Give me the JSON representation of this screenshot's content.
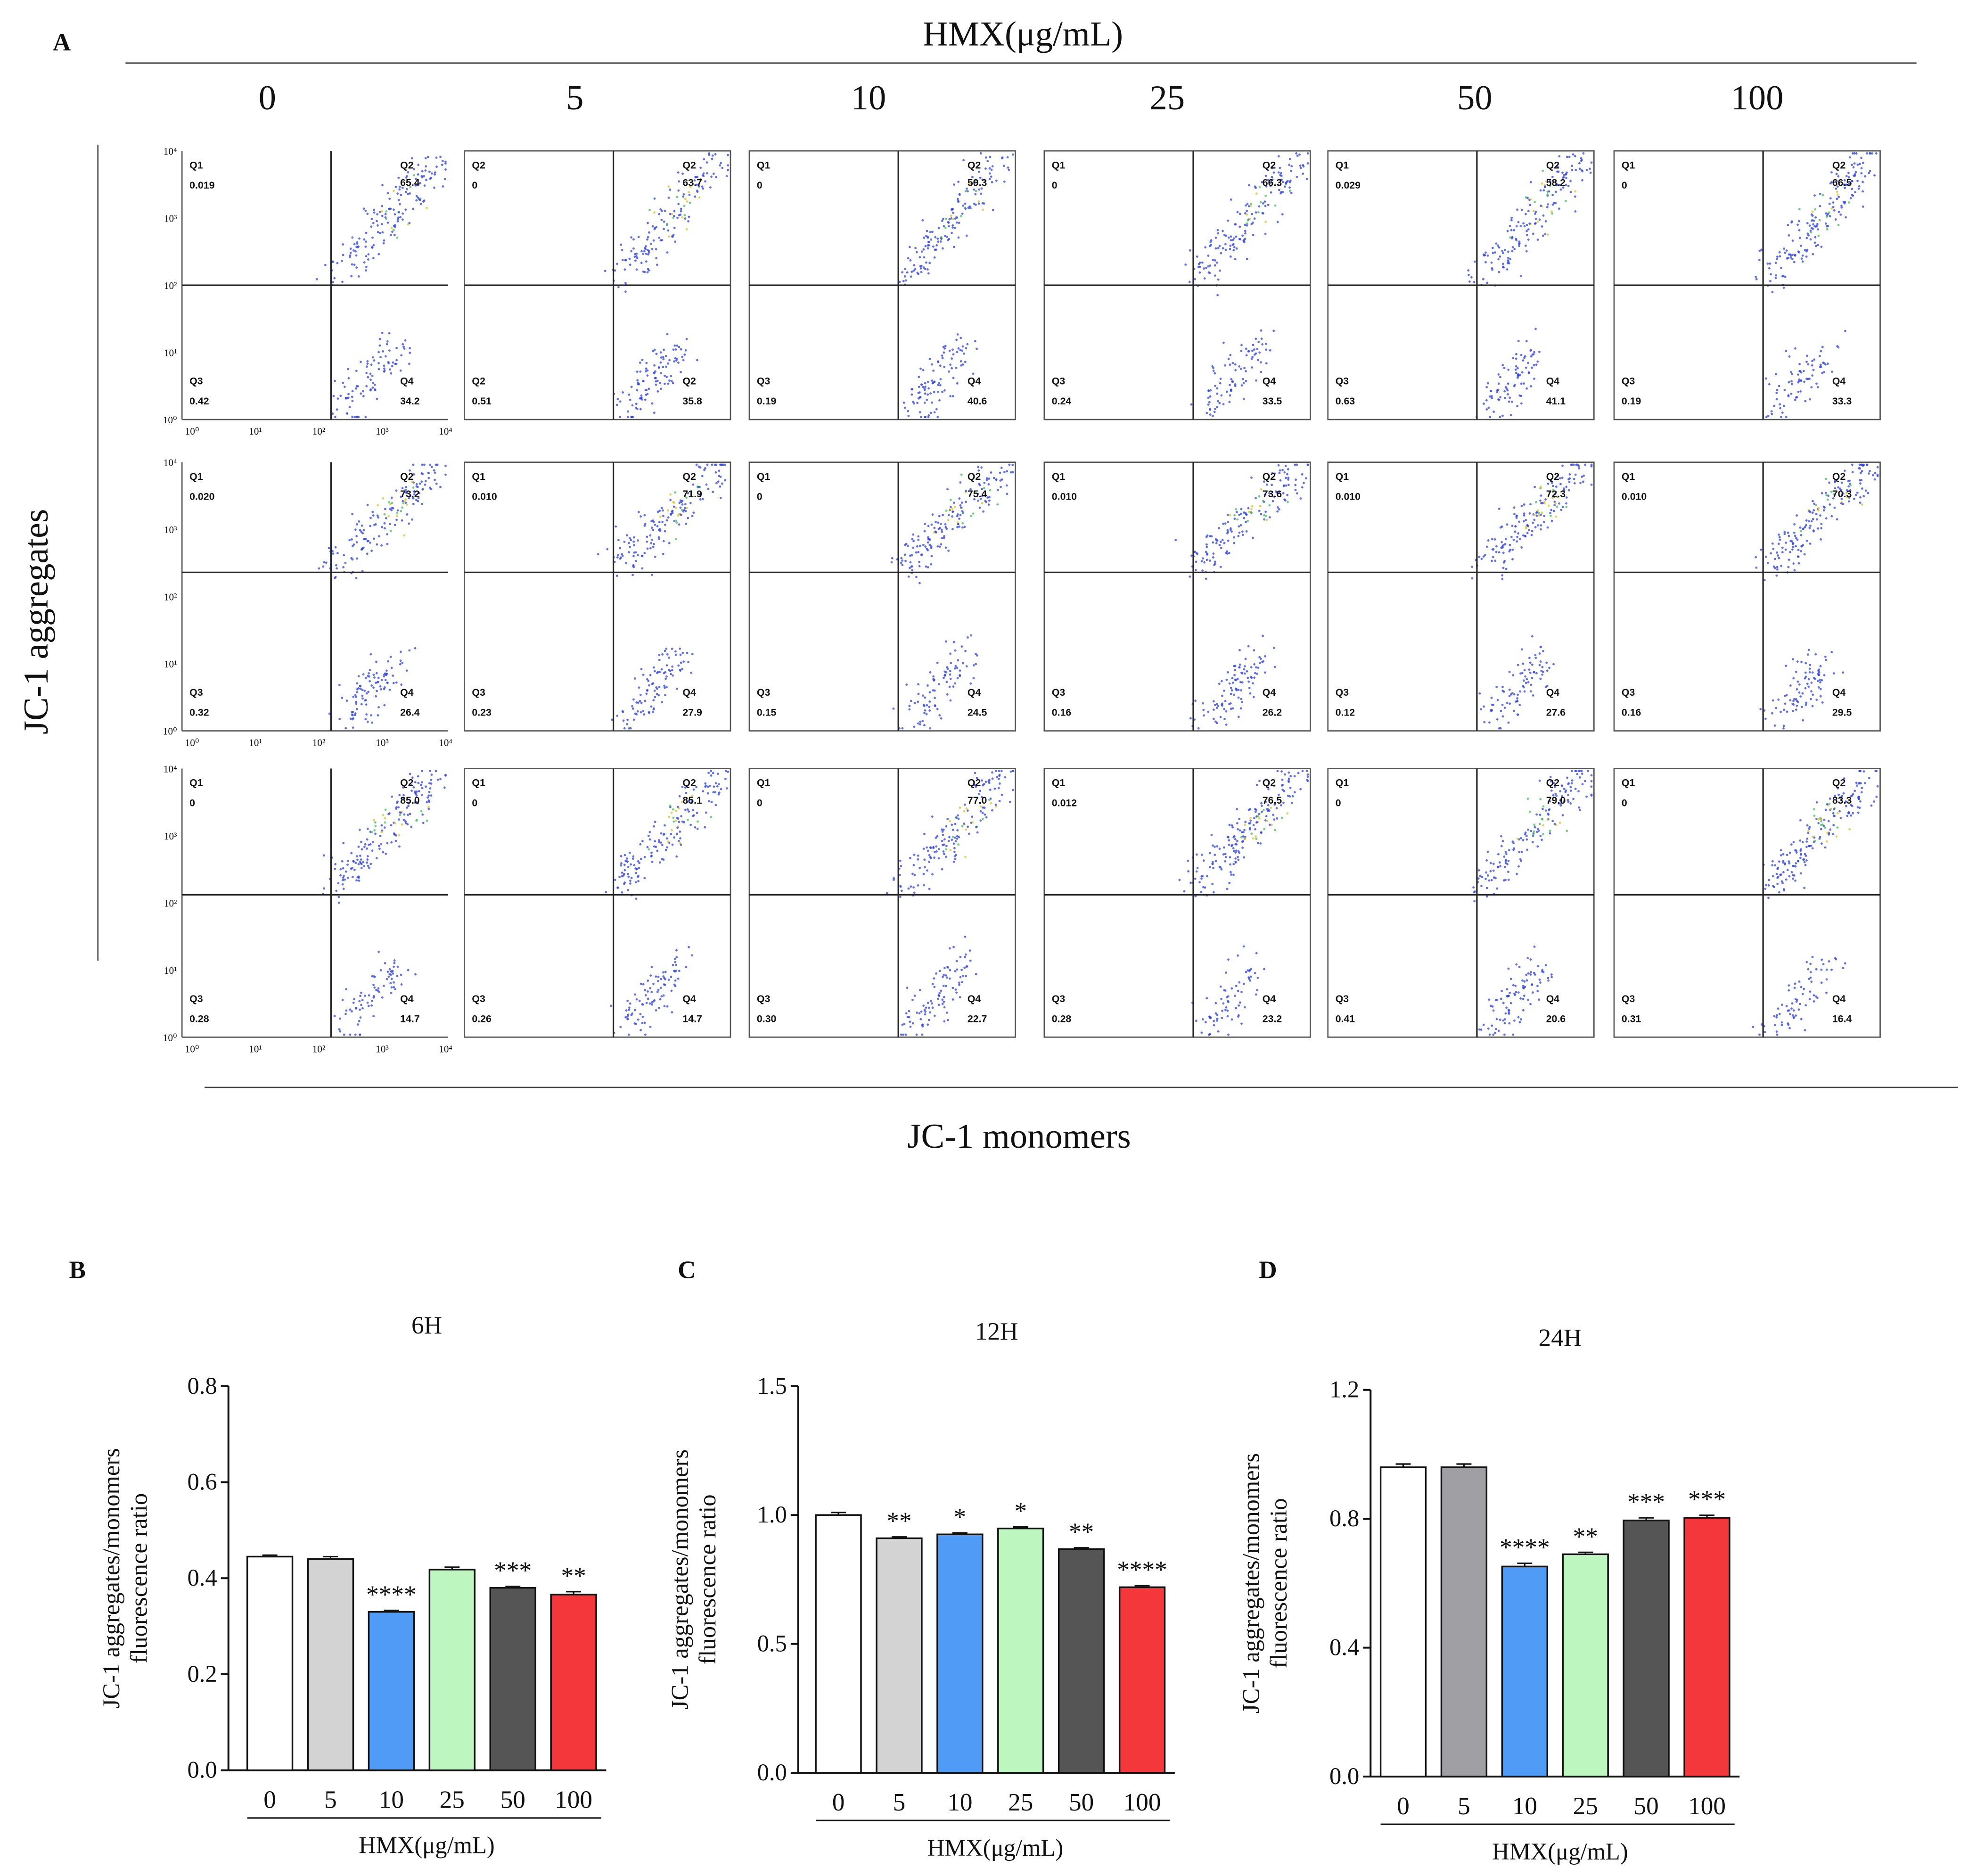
{
  "panel_labels": [
    "A",
    "B",
    "C",
    "D"
  ],
  "flow": {
    "title": "HMX(μg/mL)",
    "concentrations": [
      "0",
      "5",
      "10",
      "25",
      "50",
      "100"
    ],
    "y_label": "JC-1 aggregates",
    "x_label": "JC-1 monomers",
    "axis_ticks": [
      "10⁰",
      "10¹",
      "10²",
      "10³",
      "10⁴"
    ],
    "rows": [
      [
        [
          [
            "Q1",
            "0.019"
          ],
          [
            "Q2",
            "65.4"
          ],
          [
            "Q3",
            "0.42"
          ],
          [
            "Q4",
            "34.2"
          ]
        ],
        [
          [
            "Q2",
            "0"
          ],
          [
            "Q2",
            "63.7"
          ],
          [
            "Q2",
            "0.51"
          ],
          [
            "Q2",
            "35.8"
          ]
        ],
        [
          [
            "Q1",
            "0"
          ],
          [
            "Q2",
            "59.3"
          ],
          [
            "Q3",
            "0.19"
          ],
          [
            "Q4",
            "40.6"
          ]
        ],
        [
          [
            "Q1",
            "0"
          ],
          [
            "Q2",
            "66.3"
          ],
          [
            "Q3",
            "0.24"
          ],
          [
            "Q4",
            "33.5"
          ]
        ],
        [
          [
            "Q1",
            "0.029"
          ],
          [
            "Q2",
            "58.2"
          ],
          [
            "Q3",
            "0.63"
          ],
          [
            "Q4",
            "41.1"
          ]
        ],
        [
          [
            "Q1",
            "0"
          ],
          [
            "Q2",
            "66.5"
          ],
          [
            "Q3",
            "0.19"
          ],
          [
            "Q4",
            "33.3"
          ]
        ]
      ],
      [
        [
          [
            "Q1",
            "0.020"
          ],
          [
            "Q2",
            "73.2"
          ],
          [
            "Q3",
            "0.32"
          ],
          [
            "Q4",
            "26.4"
          ]
        ],
        [
          [
            "Q1",
            "0.010"
          ],
          [
            "Q2",
            "71.9"
          ],
          [
            "Q3",
            "0.23"
          ],
          [
            "Q4",
            "27.9"
          ]
        ],
        [
          [
            "Q1",
            "0"
          ],
          [
            "Q2",
            "75.4"
          ],
          [
            "Q3",
            "0.15"
          ],
          [
            "Q4",
            "24.5"
          ]
        ],
        [
          [
            "Q1",
            "0.010"
          ],
          [
            "Q2",
            "73.6"
          ],
          [
            "Q3",
            "0.16"
          ],
          [
            "Q4",
            "26.2"
          ]
        ],
        [
          [
            "Q1",
            "0.010"
          ],
          [
            "Q2",
            "72.3"
          ],
          [
            "Q3",
            "0.12"
          ],
          [
            "Q4",
            "27.6"
          ]
        ],
        [
          [
            "Q1",
            "0.010"
          ],
          [
            "Q2",
            "70.3"
          ],
          [
            "Q3",
            "0.16"
          ],
          [
            "Q4",
            "29.5"
          ]
        ]
      ],
      [
        [
          [
            "Q1",
            "0"
          ],
          [
            "Q2",
            "85.0"
          ],
          [
            "Q3",
            "0.28"
          ],
          [
            "Q4",
            "14.7"
          ]
        ],
        [
          [
            "Q1",
            "0"
          ],
          [
            "Q2",
            "85.1"
          ],
          [
            "Q3",
            "0.26"
          ],
          [
            "Q4",
            "14.7"
          ]
        ],
        [
          [
            "Q1",
            "0"
          ],
          [
            "Q2",
            "77.0"
          ],
          [
            "Q3",
            "0.30"
          ],
          [
            "Q4",
            "22.7"
          ]
        ],
        [
          [
            "Q1",
            "0.012"
          ],
          [
            "Q2",
            "76.5"
          ],
          [
            "Q3",
            "0.28"
          ],
          [
            "Q4",
            "23.2"
          ]
        ],
        [
          [
            "Q1",
            "0"
          ],
          [
            "Q2",
            "79.0"
          ],
          [
            "Q3",
            "0.41"
          ],
          [
            "Q4",
            "20.6"
          ]
        ],
        [
          [
            "Q1",
            "0"
          ],
          [
            "Q2",
            "83.3"
          ],
          [
            "Q3",
            "0.31"
          ],
          [
            "Q4",
            "16.4"
          ]
        ]
      ]
    ]
  },
  "chart_data": [
    {
      "type": "bar",
      "title": "6H",
      "y_label": [
        "JC-1 aggregates/monomers",
        "fluorescence ratio"
      ],
      "x_label": "HMX(μg/mL)",
      "categories": [
        "0",
        "5",
        "10",
        "25",
        "50",
        "100"
      ],
      "values": [
        0.445,
        0.44,
        0.33,
        0.418,
        0.38,
        0.366
      ],
      "errors": [
        0.003,
        0.005,
        0.003,
        0.005,
        0.003,
        0.006
      ],
      "annotations": [
        null,
        null,
        "****",
        null,
        "***",
        "**"
      ],
      "colors": [
        "#ffffff",
        "#d3d3d3",
        "#4f9bf5",
        "#bdf7bf",
        "#555555",
        "#f4373b"
      ],
      "ylim": [
        0,
        0.8
      ],
      "yticks": [
        {
          "value": 0,
          "label": "0.0"
        },
        0.2,
        0.4,
        0.6,
        0.8
      ]
    },
    {
      "type": "bar",
      "title": "12H",
      "y_label": [
        "JC-1 aggregates/monomers",
        "fluorescence ratio"
      ],
      "x_label": "HMX(μg/mL)",
      "categories": [
        "0",
        "5",
        "10",
        "25",
        "50",
        "100"
      ],
      "values": [
        1.0,
        0.91,
        0.925,
        0.948,
        0.868,
        0.72
      ],
      "errors": [
        0.01,
        0.005,
        0.006,
        0.006,
        0.005,
        0.006
      ],
      "annotations": [
        null,
        "**",
        "*",
        "*",
        "**",
        "****"
      ],
      "colors": [
        "#ffffff",
        "#d3d3d3",
        "#4f9bf5",
        "#bdf7bf",
        "#555555",
        "#f4373b"
      ],
      "ylim": [
        0,
        1.5
      ],
      "yticks": [
        {
          "value": 0,
          "label": "0.0"
        },
        0.5,
        {
          "value": 1,
          "label": "1.0"
        },
        1.5
      ]
    },
    {
      "type": "bar",
      "title": "24H",
      "y_label": [
        "JC-1 aggregates/monomers",
        "fluorescence ratio"
      ],
      "x_label": "HMX(μg/mL)",
      "categories": [
        "0",
        "5",
        "10",
        "25",
        "50",
        "100"
      ],
      "values": [
        0.96,
        0.96,
        0.652,
        0.69,
        0.795,
        0.803
      ],
      "errors": [
        0.01,
        0.01,
        0.01,
        0.006,
        0.008,
        0.008
      ],
      "annotations": [
        null,
        null,
        "****",
        "**",
        "***",
        "***"
      ],
      "colors": [
        "#ffffff",
        "#a0a0a4",
        "#4f9bf5",
        "#bdf7bf",
        "#555555",
        "#f4373b"
      ],
      "ylim": [
        0,
        1.2
      ],
      "yticks": [
        {
          "value": 0,
          "label": "0.0"
        },
        0.4,
        0.8,
        1.2
      ]
    }
  ]
}
